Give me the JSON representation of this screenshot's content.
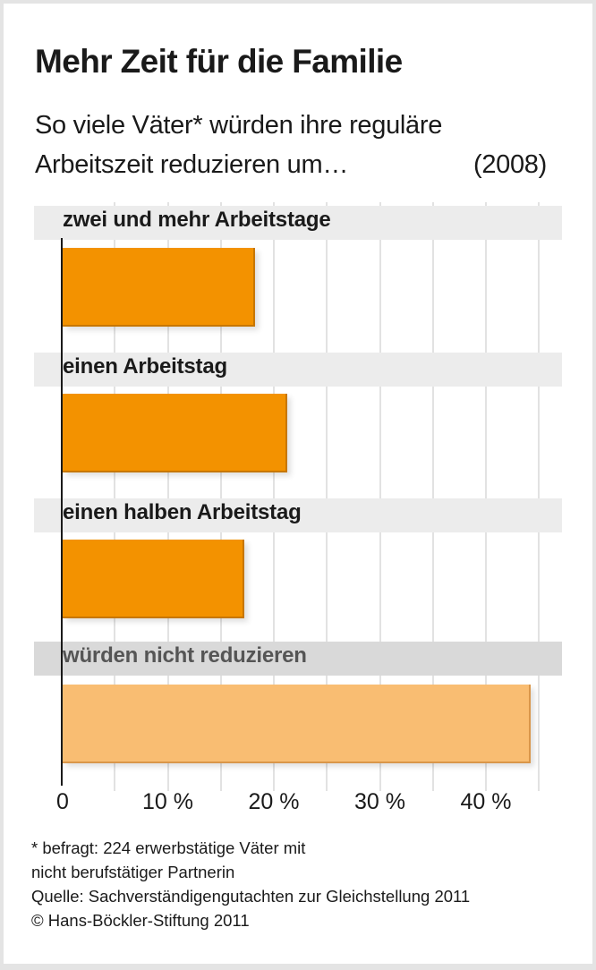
{
  "header": {
    "title": "Mehr Zeit für die Familie",
    "subtitle_line1": "So viele Väter* würden ihre reguläre",
    "subtitle_line2": "Arbeitszeit reduzieren um…",
    "year": "(2008)"
  },
  "colors": {
    "bar_primary": "#f39200",
    "bar_primary_edge": "#c77700",
    "bar_secondary": "#f9bd72",
    "bar_secondary_edge": "#d9964a",
    "band": "#ececec",
    "band_alt": "#d9d9d9"
  },
  "axis": {
    "ticks": [
      "0",
      "10 %",
      "20 %",
      "30 %",
      "40 %"
    ]
  },
  "footnotes": {
    "note_line1": "* befragt: 224 erwerbstätige Väter mit",
    "note_line2": "nicht berufstätiger Partnerin",
    "source": "Quelle: Sachverständigengutachten zur Gleichstellung 2011",
    "copyright": "© Hans-Böckler-Stiftung 2011"
  },
  "chart_data": {
    "type": "bar",
    "orientation": "horizontal",
    "title": "Mehr Zeit für die Familie",
    "subtitle": "So viele Väter* würden ihre reguläre Arbeitszeit reduzieren um… (2008)",
    "categories": [
      "zwei und mehr Arbeitstage",
      "einen Arbeitstag",
      "einen halben Arbeitstag",
      "würden nicht reduzieren"
    ],
    "values": [
      18,
      21,
      17,
      44
    ],
    "unit": "%",
    "xlabel": "",
    "ylabel": "",
    "xlim": [
      0,
      45
    ],
    "x_ticks": [
      0,
      10,
      20,
      30,
      40
    ],
    "grid": true,
    "grid_step": 5,
    "legend": null,
    "annotations": [
      "* befragt: 224 erwerbstätige Väter mit nicht berufstätiger Partnerin",
      "Quelle: Sachverständigengutachten zur Gleichstellung 2011",
      "© Hans-Böckler-Stiftung 2011"
    ]
  }
}
